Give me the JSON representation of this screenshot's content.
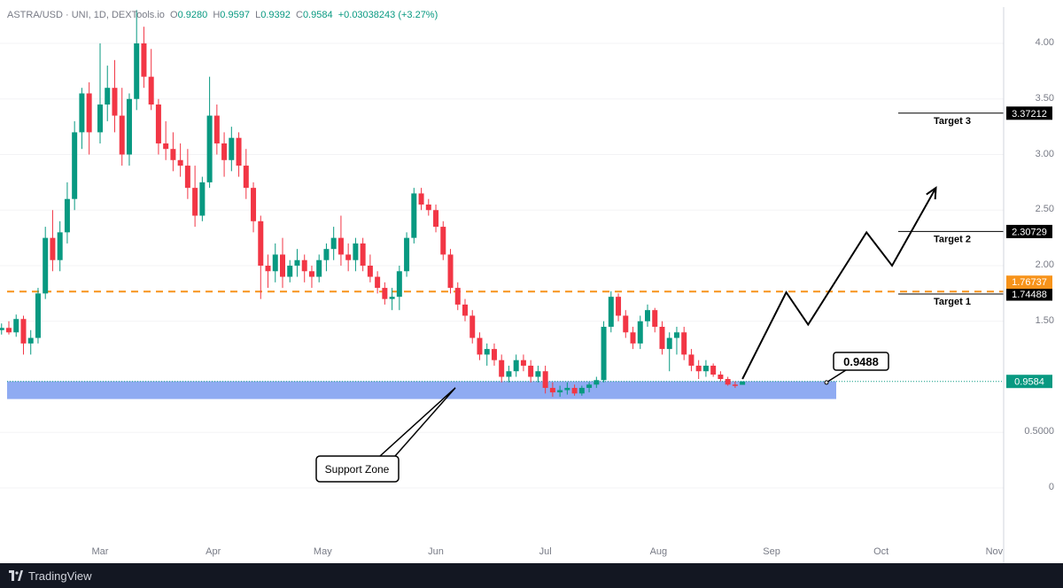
{
  "legend": {
    "symbol": "ASTRA/USD · UNI, 1D, DEXTools.io",
    "open_label": "O",
    "open": "0.9280",
    "high_label": "H",
    "high": "0.9597",
    "low_label": "L",
    "low": "0.9392",
    "close_label": "C",
    "close": "0.9584",
    "change": "+0.03038243 (+3.27%)"
  },
  "footer": {
    "brand": "TradingView"
  },
  "colors": {
    "up": "#089981",
    "down": "#f23645",
    "resistance": "#f7931a",
    "zone": "#7b9cf0",
    "price_line": "#089981"
  },
  "chart_data": {
    "type": "candlestick",
    "y_ticks": [
      "4.00",
      "3.50",
      "3.00",
      "2.50",
      "2.00",
      "1.50",
      "0.5000",
      "0"
    ],
    "y_tick_values": [
      4.0,
      3.5,
      3.0,
      2.5,
      2.0,
      1.5,
      0.5,
      0
    ],
    "x_ticks": [
      "Mar",
      "Apr",
      "May",
      "Jun",
      "Jul",
      "Aug",
      "Sep",
      "Oct",
      "Nov"
    ],
    "ylim": [
      -0.5,
      4.3
    ],
    "resistance_level": 1.76737,
    "resistance_label": "1.76737",
    "current_price": 0.9584,
    "current_price_label": "0.9584",
    "support_zone": [
      0.8,
      0.96
    ],
    "support_zone_label": "Support Zone",
    "callout": {
      "label": "0.9488",
      "value": 0.9488
    },
    "targets": [
      {
        "name": "Target 1",
        "price": 1.74488,
        "label": "1.74488"
      },
      {
        "name": "Target 2",
        "price": 2.30729,
        "label": "2.30729"
      },
      {
        "name": "Target 3",
        "price": 3.37212,
        "label": "3.37212"
      }
    ],
    "projected_path": [
      {
        "date": "Aug 24",
        "price": 0.98
      },
      {
        "date": "Sep 5",
        "price": 1.76
      },
      {
        "date": "Sep 11",
        "price": 1.47
      },
      {
        "date": "Sep 27",
        "price": 2.3
      },
      {
        "date": "Oct 4",
        "price": 2.0
      },
      {
        "date": "Oct 16",
        "price": 2.7
      }
    ],
    "candles": [
      [
        "Feb 1",
        1.4,
        1.45,
        1.35,
        1.42
      ],
      [
        "Feb 3",
        1.42,
        1.48,
        1.38,
        1.44
      ],
      [
        "Feb 5",
        1.44,
        1.5,
        1.38,
        1.4
      ],
      [
        "Feb 7",
        1.4,
        1.56,
        1.36,
        1.52
      ],
      [
        "Feb 9",
        1.52,
        1.55,
        1.2,
        1.3
      ],
      [
        "Feb 11",
        1.3,
        1.42,
        1.2,
        1.35
      ],
      [
        "Feb 13",
        1.35,
        1.8,
        1.3,
        1.75
      ],
      [
        "Feb 15",
        1.75,
        2.35,
        1.7,
        2.25
      ],
      [
        "Feb 17",
        2.25,
        2.5,
        1.95,
        2.05
      ],
      [
        "Feb 19",
        2.05,
        2.4,
        1.95,
        2.3
      ],
      [
        "Feb 21",
        2.3,
        2.75,
        2.2,
        2.6
      ],
      [
        "Feb 23",
        2.6,
        3.3,
        2.5,
        3.2
      ],
      [
        "Feb 25",
        3.2,
        3.6,
        3.05,
        3.55
      ],
      [
        "Feb 27",
        3.55,
        3.65,
        3.0,
        3.2
      ],
      [
        "Mar 1",
        3.2,
        4.0,
        3.1,
        3.45
      ],
      [
        "Mar 3",
        3.45,
        3.8,
        3.3,
        3.6
      ],
      [
        "Mar 5",
        3.6,
        3.85,
        3.2,
        3.35
      ],
      [
        "Mar 7",
        3.35,
        3.6,
        2.9,
        3.0
      ],
      [
        "Mar 9",
        3.0,
        3.55,
        2.9,
        3.5
      ],
      [
        "Mar 11",
        3.5,
        4.3,
        3.4,
        4.0
      ],
      [
        "Mar 13",
        4.0,
        4.15,
        3.6,
        3.7
      ],
      [
        "Mar 15",
        3.7,
        3.95,
        3.4,
        3.45
      ],
      [
        "Mar 17",
        3.45,
        3.5,
        3.0,
        3.1
      ],
      [
        "Mar 19",
        3.1,
        3.3,
        2.95,
        3.05
      ],
      [
        "Mar 21",
        3.05,
        3.2,
        2.85,
        2.95
      ],
      [
        "Mar 23",
        2.95,
        3.1,
        2.8,
        2.9
      ],
      [
        "Mar 25",
        2.9,
        3.05,
        2.6,
        2.7
      ],
      [
        "Mar 27",
        2.7,
        2.9,
        2.35,
        2.45
      ],
      [
        "Mar 29",
        2.45,
        2.8,
        2.4,
        2.75
      ],
      [
        "Mar 31",
        2.75,
        3.7,
        2.7,
        3.35
      ],
      [
        "Apr 2",
        3.35,
        3.45,
        3.0,
        3.1
      ],
      [
        "Apr 4",
        3.1,
        3.2,
        2.8,
        2.95
      ],
      [
        "Apr 6",
        2.95,
        3.25,
        2.85,
        3.15
      ],
      [
        "Apr 8",
        3.15,
        3.2,
        2.8,
        2.9
      ],
      [
        "Apr 10",
        2.9,
        3.05,
        2.6,
        2.7
      ],
      [
        "Apr 12",
        2.7,
        2.75,
        2.3,
        2.4
      ],
      [
        "Apr 14",
        2.4,
        2.45,
        1.7,
        2.0
      ],
      [
        "Apr 16",
        2.0,
        2.1,
        1.8,
        1.95
      ],
      [
        "Apr 18",
        1.95,
        2.2,
        1.85,
        2.1
      ],
      [
        "Apr 20",
        2.1,
        2.25,
        1.8,
        1.9
      ],
      [
        "Apr 22",
        1.9,
        2.05,
        1.85,
        2.0
      ],
      [
        "Apr 24",
        2.0,
        2.15,
        1.9,
        2.05
      ],
      [
        "Apr 26",
        2.05,
        2.1,
        1.85,
        1.95
      ],
      [
        "Apr 28",
        1.95,
        2.0,
        1.8,
        1.9
      ],
      [
        "Apr 30",
        1.9,
        2.1,
        1.85,
        2.05
      ],
      [
        "May 2",
        2.05,
        2.2,
        1.95,
        2.15
      ],
      [
        "May 4",
        2.15,
        2.35,
        2.05,
        2.25
      ],
      [
        "May 6",
        2.25,
        2.45,
        2.0,
        2.1
      ],
      [
        "May 8",
        2.1,
        2.2,
        1.95,
        2.05
      ],
      [
        "May 10",
        2.05,
        2.25,
        1.95,
        2.2
      ],
      [
        "May 12",
        2.2,
        2.25,
        1.95,
        2.0
      ],
      [
        "May 14",
        2.0,
        2.1,
        1.85,
        1.9
      ],
      [
        "May 16",
        1.9,
        1.95,
        1.75,
        1.8
      ],
      [
        "May 18",
        1.8,
        1.85,
        1.65,
        1.7
      ],
      [
        "May 20",
        1.7,
        1.8,
        1.6,
        1.72
      ],
      [
        "May 22",
        1.72,
        2.0,
        1.6,
        1.95
      ],
      [
        "May 24",
        1.95,
        2.3,
        1.9,
        2.25
      ],
      [
        "May 26",
        2.25,
        2.7,
        2.2,
        2.65
      ],
      [
        "May 28",
        2.65,
        2.7,
        2.5,
        2.55
      ],
      [
        "May 30",
        2.55,
        2.6,
        2.45,
        2.5
      ],
      [
        "Jun 1",
        2.5,
        2.55,
        2.3,
        2.35
      ],
      [
        "Jun 3",
        2.35,
        2.4,
        2.05,
        2.1
      ],
      [
        "Jun 5",
        2.1,
        2.15,
        1.75,
        1.8
      ],
      [
        "Jun 7",
        1.8,
        1.85,
        1.6,
        1.65
      ],
      [
        "Jun 9",
        1.65,
        1.7,
        1.5,
        1.55
      ],
      [
        "Jun 11",
        1.55,
        1.6,
        1.3,
        1.35
      ],
      [
        "Jun 13",
        1.35,
        1.4,
        1.15,
        1.2
      ],
      [
        "Jun 15",
        1.2,
        1.3,
        1.1,
        1.25
      ],
      [
        "Jun 17",
        1.25,
        1.3,
        1.1,
        1.15
      ],
      [
        "Jun 19",
        1.15,
        1.2,
        0.95,
        1.0
      ],
      [
        "Jun 21",
        1.0,
        1.1,
        0.95,
        1.05
      ],
      [
        "Jun 23",
        1.05,
        1.2,
        1.0,
        1.15
      ],
      [
        "Jun 25",
        1.15,
        1.2,
        1.05,
        1.1
      ],
      [
        "Jun 27",
        1.1,
        1.15,
        0.95,
        1.0
      ],
      [
        "Jun 29",
        1.0,
        1.1,
        0.95,
        1.05
      ],
      [
        "Jul 1",
        1.05,
        1.1,
        0.85,
        0.9
      ],
      [
        "Jul 3",
        0.9,
        0.95,
        0.82,
        0.86
      ],
      [
        "Jul 5",
        0.86,
        0.92,
        0.82,
        0.88
      ],
      [
        "Jul 7",
        0.88,
        0.95,
        0.84,
        0.9
      ],
      [
        "Jul 9",
        0.9,
        0.93,
        0.83,
        0.85
      ],
      [
        "Jul 11",
        0.85,
        0.92,
        0.83,
        0.9
      ],
      [
        "Jul 13",
        0.9,
        0.95,
        0.86,
        0.93
      ],
      [
        "Jul 15",
        0.93,
        1.0,
        0.9,
        0.97
      ],
      [
        "Jul 17",
        0.97,
        1.5,
        0.95,
        1.45
      ],
      [
        "Jul 19",
        1.45,
        1.77,
        1.4,
        1.72
      ],
      [
        "Jul 21",
        1.72,
        1.75,
        1.5,
        1.55
      ],
      [
        "Jul 23",
        1.55,
        1.6,
        1.35,
        1.4
      ],
      [
        "Jul 25",
        1.4,
        1.45,
        1.25,
        1.3
      ],
      [
        "Jul 27",
        1.3,
        1.55,
        1.25,
        1.5
      ],
      [
        "Jul 29",
        1.5,
        1.65,
        1.45,
        1.6
      ],
      [
        "Jul 31",
        1.6,
        1.62,
        1.4,
        1.45
      ],
      [
        "Aug 2",
        1.45,
        1.5,
        1.2,
        1.25
      ],
      [
        "Aug 4",
        1.25,
        1.4,
        1.05,
        1.35
      ],
      [
        "Aug 6",
        1.35,
        1.45,
        1.2,
        1.4
      ],
      [
        "Aug 8",
        1.4,
        1.45,
        1.15,
        1.2
      ],
      [
        "Aug 10",
        1.2,
        1.25,
        1.05,
        1.1
      ],
      [
        "Aug 12",
        1.1,
        1.15,
        0.98,
        1.05
      ],
      [
        "Aug 14",
        1.05,
        1.15,
        1.0,
        1.1
      ],
      [
        "Aug 16",
        1.1,
        1.12,
        1.0,
        1.02
      ],
      [
        "Aug 18",
        1.02,
        1.05,
        0.96,
        0.98
      ],
      [
        "Aug 20",
        0.98,
        1.0,
        0.92,
        0.93
      ],
      [
        "Aug 22",
        0.93,
        0.96,
        0.9,
        0.928
      ],
      [
        "Aug 24",
        0.928,
        0.9597,
        0.9392,
        0.9584
      ]
    ]
  }
}
